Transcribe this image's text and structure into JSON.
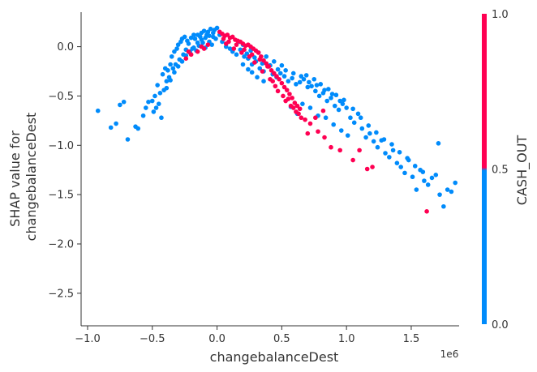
{
  "chart_data": {
    "type": "scatter",
    "xlabel": "changebalanceDest",
    "ylabel_lines": [
      "SHAP value for",
      "changebalanceDest"
    ],
    "x_offset_label": "1e6",
    "x_ticks": [
      -1.0,
      -0.5,
      0.0,
      0.5,
      1.0,
      1.5
    ],
    "x_tick_labels": [
      "−1.0",
      "−0.5",
      "0.0",
      "0.5",
      "1.0",
      "1.5"
    ],
    "y_ticks": [
      0.0,
      -0.5,
      -1.0,
      -1.5,
      -2.0,
      -2.5
    ],
    "y_tick_labels": [
      "0.0",
      "−0.5",
      "−1.0",
      "−1.5",
      "−2.0",
      "−2.5"
    ],
    "xlim": [
      -1.05,
      1.87
    ],
    "ylim": [
      -2.83,
      0.35
    ],
    "grid": false,
    "colorbar": {
      "label": "CASH_OUT",
      "ticks": [
        1.0,
        0.5,
        0.0
      ],
      "tick_labels": [
        "1.0",
        "0.5",
        "0.0"
      ],
      "low_color": "#008bfb",
      "high_color": "#ff0052"
    },
    "colors": {
      "blue": "#008bfb",
      "red": "#ff0052",
      "axis": "#333333"
    },
    "series": [
      {
        "cash_out": 0,
        "points": [
          [
            -0.92,
            -0.65
          ],
          [
            -0.82,
            -0.82
          ],
          [
            -0.78,
            -0.78
          ],
          [
            -0.75,
            -0.59
          ],
          [
            -0.72,
            -0.56
          ],
          [
            -0.69,
            -0.94
          ],
          [
            -0.63,
            -0.81
          ],
          [
            -0.61,
            -0.83
          ],
          [
            -0.57,
            -0.7
          ],
          [
            -0.55,
            -0.62
          ],
          [
            -0.53,
            -0.56
          ],
          [
            -0.5,
            -0.55
          ],
          [
            -0.48,
            -0.5
          ],
          [
            -0.45,
            -0.58
          ],
          [
            -0.43,
            -0.72
          ],
          [
            -0.46,
            -0.39
          ],
          [
            -0.42,
            -0.28
          ],
          [
            -0.4,
            -0.22
          ],
          [
            -0.38,
            -0.24
          ],
          [
            -0.36,
            -0.18
          ],
          [
            -0.35,
            -0.1
          ],
          [
            -0.33,
            -0.05
          ],
          [
            -0.31,
            -0.02
          ],
          [
            -0.3,
            0.02
          ],
          [
            -0.28,
            0.05
          ],
          [
            -0.27,
            0.08
          ],
          [
            -0.25,
            0.1
          ],
          [
            -0.23,
            0.06
          ],
          [
            -0.22,
            0.03
          ],
          [
            -0.2,
            0.09
          ],
          [
            -0.18,
            0.12
          ],
          [
            -0.17,
            0.08
          ],
          [
            -0.15,
            0.12
          ],
          [
            -0.13,
            0.1
          ],
          [
            -0.12,
            0.14
          ],
          [
            -0.1,
            0.16
          ],
          [
            -0.08,
            0.12
          ],
          [
            -0.07,
            0.15
          ],
          [
            -0.05,
            0.18
          ],
          [
            -0.03,
            0.14
          ],
          [
            -0.02,
            0.17
          ],
          [
            0.0,
            0.19
          ],
          [
            -0.01,
            0.08
          ],
          [
            -0.04,
            0.02
          ],
          [
            -0.06,
            0.05
          ],
          [
            -0.09,
            -0.01
          ],
          [
            -0.11,
            0.04
          ],
          [
            -0.14,
            0.01
          ],
          [
            -0.16,
            -0.04
          ],
          [
            -0.19,
            -0.02
          ],
          [
            -0.21,
            -0.06
          ],
          [
            -0.24,
            -0.03
          ],
          [
            -0.26,
            -0.08
          ],
          [
            -0.29,
            -0.13
          ],
          [
            -0.32,
            -0.18
          ],
          [
            -0.34,
            -0.22
          ],
          [
            -0.37,
            -0.31
          ],
          [
            -0.39,
            -0.35
          ],
          [
            -0.41,
            -0.44
          ],
          [
            -0.44,
            -0.47
          ],
          [
            -0.47,
            -0.62
          ],
          [
            -0.49,
            -0.66
          ],
          [
            -0.39,
            -0.42
          ],
          [
            -0.36,
            -0.34
          ],
          [
            -0.33,
            -0.26
          ],
          [
            -0.3,
            -0.2
          ],
          [
            -0.27,
            -0.15
          ],
          [
            -0.24,
            -0.09
          ],
          [
            -0.21,
            -0.05
          ],
          [
            -0.18,
            -0.01
          ],
          [
            -0.15,
            0.04
          ],
          [
            -0.12,
            0.07
          ],
          [
            -0.09,
            0.09
          ],
          [
            -0.06,
            0.11
          ],
          [
            -0.03,
            0.1
          ],
          [
            0.02,
            0.12
          ],
          [
            0.04,
            0.05
          ],
          [
            0.07,
            0.0
          ],
          [
            0.1,
            -0.02
          ],
          [
            0.12,
            -0.05
          ],
          [
            0.15,
            -0.08
          ],
          [
            0.18,
            -0.03
          ],
          [
            0.21,
            -0.1
          ],
          [
            0.24,
            -0.12
          ],
          [
            0.27,
            -0.18
          ],
          [
            0.3,
            -0.15
          ],
          [
            0.33,
            -0.22
          ],
          [
            0.36,
            -0.25
          ],
          [
            0.4,
            -0.2
          ],
          [
            0.43,
            -0.28
          ],
          [
            0.46,
            -0.31
          ],
          [
            0.49,
            -0.27
          ],
          [
            0.52,
            -0.3
          ],
          [
            0.55,
            -0.35
          ],
          [
            0.58,
            -0.32
          ],
          [
            0.61,
            -0.38
          ],
          [
            0.64,
            -0.36
          ],
          [
            0.67,
            -0.33
          ],
          [
            0.7,
            -0.41
          ],
          [
            0.73,
            -0.4
          ],
          [
            0.76,
            -0.45
          ],
          [
            0.79,
            -0.5
          ],
          [
            0.82,
            -0.47
          ],
          [
            0.85,
            -0.55
          ],
          [
            0.88,
            -0.52
          ],
          [
            0.91,
            -0.6
          ],
          [
            0.94,
            -0.64
          ],
          [
            0.97,
            -0.58
          ],
          [
            1.0,
            -0.62
          ],
          [
            1.03,
            -0.72
          ],
          [
            1.06,
            -0.77
          ],
          [
            1.09,
            -0.68
          ],
          [
            1.12,
            -0.83
          ],
          [
            1.15,
            -0.92
          ],
          [
            1.18,
            -0.88
          ],
          [
            1.21,
            -0.96
          ],
          [
            1.24,
            -1.02
          ],
          [
            1.27,
            -0.95
          ],
          [
            1.3,
            -1.08
          ],
          [
            1.33,
            -1.12
          ],
          [
            1.36,
            -1.05
          ],
          [
            1.39,
            -1.18
          ],
          [
            1.42,
            -1.22
          ],
          [
            1.45,
            -1.28
          ],
          [
            1.48,
            -1.15
          ],
          [
            1.51,
            -1.32
          ],
          [
            1.54,
            -1.45
          ],
          [
            1.57,
            -1.25
          ],
          [
            1.6,
            -1.36
          ],
          [
            1.63,
            -1.4
          ],
          [
            1.66,
            -1.33
          ],
          [
            1.69,
            -1.3
          ],
          [
            1.72,
            -1.5
          ],
          [
            1.75,
            -1.62
          ],
          [
            1.78,
            -1.45
          ],
          [
            1.81,
            -1.47
          ],
          [
            1.84,
            -1.38
          ],
          [
            1.71,
            -0.98
          ],
          [
            0.57,
            -0.61
          ],
          [
            0.62,
            -0.68
          ],
          [
            0.66,
            -0.58
          ],
          [
            0.72,
            -0.62
          ],
          [
            0.78,
            -0.7
          ],
          [
            0.84,
            -0.72
          ],
          [
            0.9,
            -0.79
          ],
          [
            0.96,
            -0.85
          ],
          [
            1.01,
            -0.9
          ],
          [
            0.69,
            -0.29
          ],
          [
            0.75,
            -0.33
          ],
          [
            0.8,
            -0.38
          ],
          [
            0.86,
            -0.43
          ],
          [
            0.92,
            -0.49
          ],
          [
            0.98,
            -0.54
          ],
          [
            0.5,
            -0.19
          ],
          [
            0.44,
            -0.15
          ],
          [
            0.38,
            -0.1
          ],
          [
            0.32,
            -0.06
          ],
          [
            0.26,
            -0.04
          ],
          [
            0.2,
            0.02
          ],
          [
            0.17,
            0.05
          ],
          [
            0.23,
            -0.07
          ],
          [
            0.29,
            -0.11
          ],
          [
            0.35,
            -0.17
          ],
          [
            0.41,
            -0.19
          ],
          [
            0.47,
            -0.23
          ],
          [
            0.53,
            -0.24
          ],
          [
            0.59,
            -0.27
          ],
          [
            0.65,
            -0.3
          ],
          [
            0.71,
            -0.36
          ],
          [
            0.77,
            -0.39
          ],
          [
            0.83,
            -0.44
          ],
          [
            0.89,
            -0.48
          ],
          [
            0.95,
            -0.55
          ],
          [
            1.05,
            -0.63
          ],
          [
            1.11,
            -0.72
          ],
          [
            1.17,
            -0.8
          ],
          [
            1.23,
            -0.87
          ],
          [
            1.29,
            -0.94
          ],
          [
            1.35,
            -0.99
          ],
          [
            1.41,
            -1.07
          ],
          [
            1.47,
            -1.13
          ],
          [
            1.53,
            -1.21
          ],
          [
            1.59,
            -1.27
          ],
          [
            0.2,
            -0.18
          ],
          [
            0.27,
            -0.26
          ],
          [
            0.36,
            -0.35
          ],
          [
            0.24,
            -0.23
          ],
          [
            0.31,
            -0.31
          ]
        ]
      },
      {
        "cash_out": 1,
        "points": [
          [
            -0.24,
            -0.12
          ],
          [
            -0.2,
            -0.08
          ],
          [
            -0.15,
            -0.05
          ],
          [
            -0.1,
            -0.02
          ],
          [
            -0.07,
            0.02
          ],
          [
            0.02,
            0.15
          ],
          [
            0.04,
            0.13
          ],
          [
            0.06,
            0.11
          ],
          [
            0.08,
            0.12
          ],
          [
            0.1,
            0.09
          ],
          [
            0.12,
            0.1
          ],
          [
            0.14,
            0.07
          ],
          [
            0.16,
            0.06
          ],
          [
            0.18,
            0.05
          ],
          [
            0.2,
            0.03
          ],
          [
            0.22,
            0.01
          ],
          [
            0.24,
            0.02
          ],
          [
            0.26,
            0.0
          ],
          [
            0.28,
            -0.02
          ],
          [
            0.3,
            -0.04
          ],
          [
            0.32,
            -0.06
          ],
          [
            0.34,
            -0.1
          ],
          [
            0.36,
            -0.14
          ],
          [
            0.38,
            -0.17
          ],
          [
            0.4,
            -0.2
          ],
          [
            0.42,
            -0.24
          ],
          [
            0.44,
            -0.27
          ],
          [
            0.46,
            -0.3
          ],
          [
            0.48,
            -0.33
          ],
          [
            0.5,
            -0.37
          ],
          [
            0.52,
            -0.41
          ],
          [
            0.54,
            -0.44
          ],
          [
            0.56,
            -0.48
          ],
          [
            0.58,
            -0.52
          ],
          [
            0.6,
            -0.57
          ],
          [
            0.62,
            -0.6
          ],
          [
            0.64,
            -0.63
          ],
          [
            0.53,
            -0.55
          ],
          [
            0.57,
            -0.6
          ],
          [
            0.61,
            -0.66
          ],
          [
            0.65,
            -0.72
          ],
          [
            0.72,
            -0.78
          ],
          [
            0.78,
            -0.86
          ],
          [
            0.83,
            -0.92
          ],
          [
            0.88,
            -1.02
          ],
          [
            0.95,
            -1.05
          ],
          [
            1.05,
            -1.15
          ],
          [
            1.1,
            -1.05
          ],
          [
            1.2,
            -1.22
          ],
          [
            1.16,
            -1.24
          ],
          [
            1.62,
            -1.67
          ],
          [
            0.76,
            -0.72
          ],
          [
            0.82,
            -0.65
          ],
          [
            0.7,
            -0.88
          ],
          [
            0.45,
            -0.4
          ],
          [
            0.41,
            -0.33
          ],
          [
            0.35,
            -0.25
          ],
          [
            0.29,
            -0.16
          ],
          [
            0.25,
            -0.1
          ],
          [
            0.19,
            -0.06
          ],
          [
            0.13,
            -0.02
          ],
          [
            0.07,
            0.03
          ],
          [
            0.05,
            0.08
          ],
          [
            0.09,
            0.05
          ],
          [
            0.15,
            0.02
          ],
          [
            0.21,
            -0.03
          ],
          [
            0.27,
            -0.08
          ],
          [
            0.33,
            -0.13
          ],
          [
            0.39,
            -0.2
          ],
          [
            0.43,
            -0.35
          ],
          [
            0.47,
            -0.45
          ],
          [
            0.51,
            -0.5
          ],
          [
            0.55,
            -0.53
          ],
          [
            0.59,
            -0.62
          ],
          [
            0.63,
            -0.68
          ],
          [
            -0.22,
            -0.05
          ],
          [
            -0.12,
            0.0
          ],
          [
            0.68,
            -0.74
          ]
        ]
      }
    ]
  }
}
